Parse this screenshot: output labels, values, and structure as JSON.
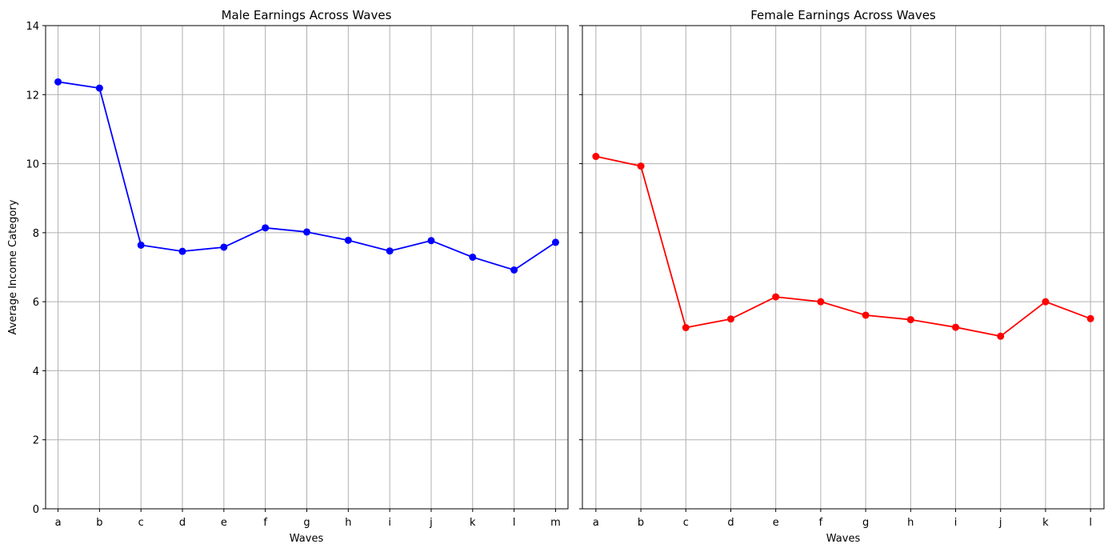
{
  "chart_data": [
    {
      "type": "line",
      "title": "Male Earnings Across Waves",
      "xlabel": "Waves",
      "ylabel": "Average Income Category",
      "categories": [
        "a",
        "b",
        "c",
        "d",
        "e",
        "f",
        "g",
        "h",
        "i",
        "j",
        "k",
        "l",
        "m"
      ],
      "series": [
        {
          "values": [
            12.37,
            12.19,
            7.64,
            7.46,
            7.58,
            8.14,
            8.02,
            7.78,
            7.47,
            7.77,
            7.29,
            6.92,
            7.72
          ],
          "color": "#0000ff"
        }
      ],
      "ylim": [
        0,
        14
      ],
      "yticks": [
        0,
        2,
        4,
        6,
        8,
        10,
        12,
        14
      ],
      "grid": true,
      "marker": "circle"
    },
    {
      "type": "line",
      "title": "Female Earnings Across Waves",
      "xlabel": "Waves",
      "ylabel": "",
      "categories": [
        "a",
        "b",
        "c",
        "d",
        "e",
        "f",
        "g",
        "h",
        "i",
        "j",
        "k",
        "l"
      ],
      "series": [
        {
          "values": [
            10.21,
            9.93,
            5.25,
            5.5,
            6.14,
            6.0,
            5.61,
            5.48,
            5.26,
            5.0,
            6.0,
            5.51
          ],
          "color": "#ff0000"
        }
      ],
      "ylim": [
        0,
        14
      ],
      "yticks": [
        0,
        2,
        4,
        6,
        8,
        10,
        12,
        14
      ],
      "grid": true,
      "marker": "circle",
      "shared_y": true
    }
  ],
  "colors": {
    "grid": "#b0b0b0",
    "axes": "#000000"
  }
}
